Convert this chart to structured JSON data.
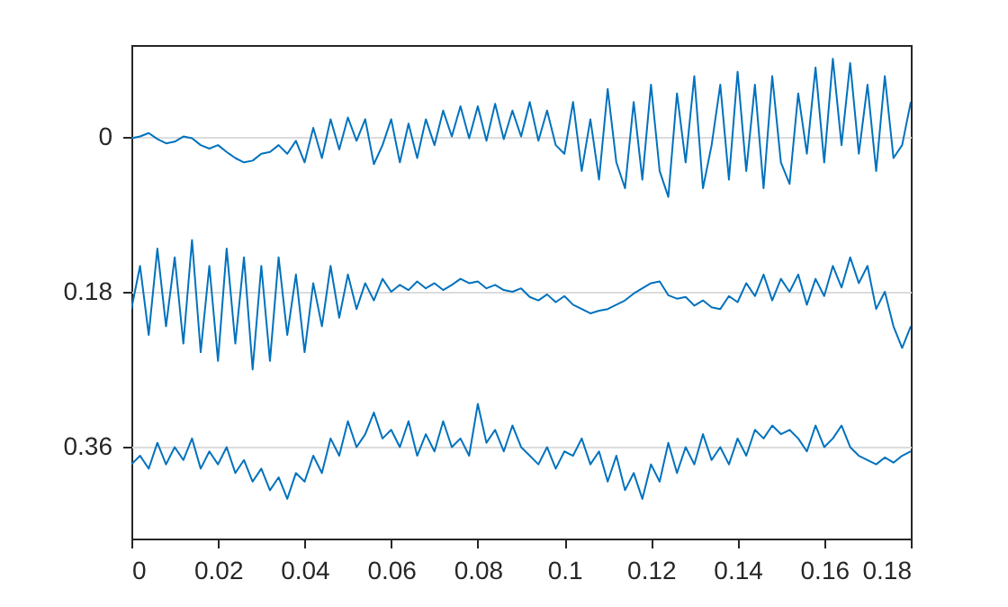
{
  "chart_data": {
    "type": "line",
    "x": [
      0,
      0.002,
      0.004,
      0.006,
      0.008,
      0.01,
      0.012,
      0.014,
      0.016,
      0.018,
      0.02,
      0.022,
      0.024,
      0.026,
      0.028,
      0.03,
      0.032,
      0.034,
      0.036,
      0.038,
      0.04,
      0.042,
      0.044,
      0.046,
      0.048,
      0.05,
      0.052,
      0.054,
      0.056,
      0.058,
      0.06,
      0.062,
      0.064,
      0.066,
      0.068,
      0.07,
      0.072,
      0.074,
      0.076,
      0.078,
      0.08,
      0.082,
      0.084,
      0.086,
      0.088,
      0.09,
      0.092,
      0.094,
      0.096,
      0.098,
      0.1,
      0.102,
      0.104,
      0.106,
      0.108,
      0.11,
      0.112,
      0.114,
      0.116,
      0.118,
      0.12,
      0.122,
      0.124,
      0.126,
      0.128,
      0.13,
      0.132,
      0.134,
      0.136,
      0.138,
      0.14,
      0.142,
      0.144,
      0.146,
      0.148,
      0.15,
      0.152,
      0.154,
      0.156,
      0.158,
      0.16,
      0.162,
      0.164,
      0.166,
      0.168,
      0.17,
      0.172,
      0.174,
      0.176,
      0.178,
      0.18
    ],
    "series": [
      {
        "color": "#0072bd",
        "values": [
          0.002,
          0.0,
          -0.004,
          0.003,
          0.008,
          0.006,
          0.0,
          0.002,
          0.01,
          0.014,
          0.01,
          0.018,
          0.025,
          0.03,
          0.028,
          0.02,
          0.018,
          0.01,
          0.02,
          0.005,
          0.03,
          -0.01,
          0.025,
          -0.02,
          0.015,
          -0.022,
          0.005,
          -0.02,
          0.032,
          0.01,
          -0.02,
          0.03,
          -0.015,
          0.025,
          -0.02,
          0.01,
          -0.03,
          0.0,
          -0.035,
          0.002,
          -0.035,
          0.005,
          -0.038,
          0.003,
          -0.03,
          0.0,
          -0.04,
          0.005,
          -0.03,
          0.01,
          0.02,
          -0.04,
          0.04,
          -0.02,
          0.05,
          -0.055,
          0.03,
          0.06,
          -0.04,
          0.05,
          -0.06,
          0.04,
          0.07,
          -0.05,
          0.03,
          -0.07,
          0.06,
          0.01,
          -0.06,
          0.05,
          -0.075,
          0.04,
          -0.06,
          0.06,
          -0.07,
          0.03,
          0.055,
          -0.05,
          0.02,
          -0.08,
          0.03,
          -0.09,
          0.01,
          -0.085,
          0.02,
          -0.06,
          0.04,
          -0.07,
          0.025,
          0.01,
          -0.04
        ]
      },
      {
        "color": "#0072bd",
        "values": [
          0.2,
          0.15,
          0.23,
          0.13,
          0.22,
          0.14,
          0.24,
          0.12,
          0.25,
          0.15,
          0.26,
          0.13,
          0.24,
          0.14,
          0.27,
          0.15,
          0.26,
          0.14,
          0.23,
          0.16,
          0.25,
          0.17,
          0.22,
          0.15,
          0.21,
          0.16,
          0.2,
          0.17,
          0.19,
          0.165,
          0.18,
          0.172,
          0.178,
          0.168,
          0.176,
          0.17,
          0.178,
          0.172,
          0.165,
          0.17,
          0.168,
          0.176,
          0.172,
          0.178,
          0.18,
          0.176,
          0.186,
          0.19,
          0.183,
          0.192,
          0.185,
          0.195,
          0.2,
          0.205,
          0.202,
          0.2,
          0.195,
          0.19,
          0.182,
          0.176,
          0.17,
          0.168,
          0.184,
          0.188,
          0.186,
          0.196,
          0.19,
          0.198,
          0.2,
          0.185,
          0.192,
          0.17,
          0.185,
          0.16,
          0.19,
          0.165,
          0.18,
          0.16,
          0.195,
          0.165,
          0.185,
          0.15,
          0.175,
          0.14,
          0.17,
          0.15,
          0.2,
          0.18,
          0.22,
          0.245,
          0.22
        ]
      },
      {
        "color": "#0072bd",
        "values": [
          0.38,
          0.37,
          0.385,
          0.355,
          0.38,
          0.36,
          0.375,
          0.35,
          0.385,
          0.365,
          0.38,
          0.36,
          0.39,
          0.375,
          0.4,
          0.385,
          0.41,
          0.395,
          0.42,
          0.39,
          0.4,
          0.37,
          0.39,
          0.35,
          0.37,
          0.33,
          0.36,
          0.345,
          0.32,
          0.35,
          0.34,
          0.36,
          0.33,
          0.37,
          0.345,
          0.365,
          0.33,
          0.36,
          0.35,
          0.37,
          0.31,
          0.355,
          0.34,
          0.365,
          0.335,
          0.36,
          0.37,
          0.38,
          0.36,
          0.385,
          0.365,
          0.37,
          0.35,
          0.38,
          0.365,
          0.4,
          0.37,
          0.41,
          0.39,
          0.42,
          0.38,
          0.4,
          0.355,
          0.39,
          0.36,
          0.38,
          0.345,
          0.375,
          0.36,
          0.38,
          0.35,
          0.37,
          0.34,
          0.35,
          0.335,
          0.345,
          0.34,
          0.35,
          0.365,
          0.335,
          0.36,
          0.35,
          0.335,
          0.36,
          0.37,
          0.375,
          0.38,
          0.372,
          0.378,
          0.37,
          0.365
        ]
      }
    ],
    "xlim": [
      0,
      0.18
    ],
    "xticks": [
      0,
      0.02,
      0.04,
      0.06,
      0.08,
      0.1,
      0.12,
      0.14,
      0.16,
      0.18
    ],
    "ylim": [
      0.466,
      -0.106
    ],
    "yticks": [
      0,
      0.18,
      0.36
    ],
    "grid": "y",
    "line_style": "solid",
    "marker": "none"
  }
}
